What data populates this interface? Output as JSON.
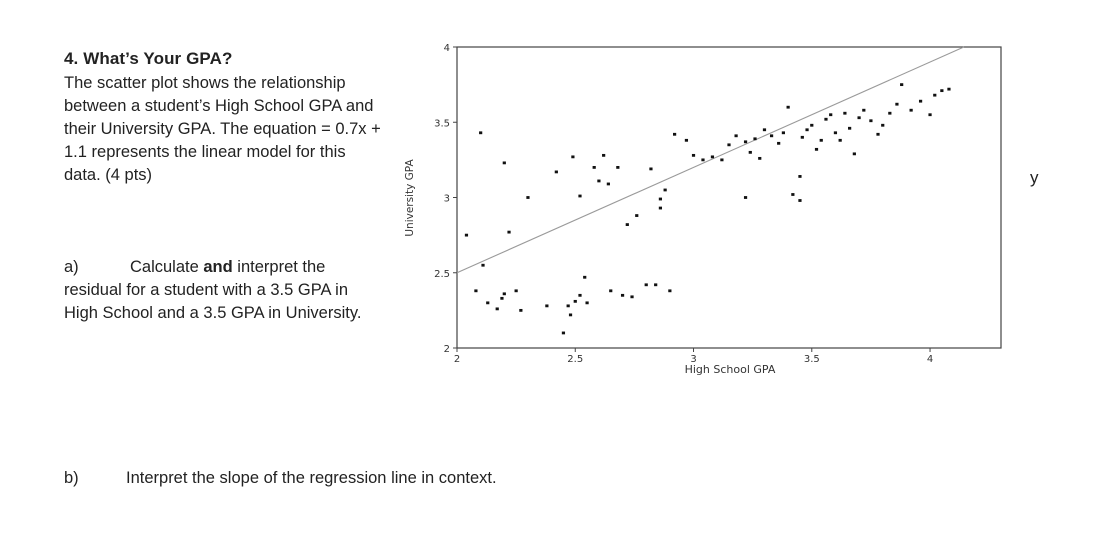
{
  "question": {
    "title": "4. What’s Your GPA?",
    "text": "The scatter plot shows the relationship between a student’s High School GPA and their University GPA. The equation = 0.7x + 1.1 represents the linear model for this data. (4 pts)"
  },
  "part_a": {
    "label": "a)",
    "text_before": "Calculate ",
    "bold": "and",
    "text_after": " interpret the residual for a student with a 3.5 GPA in High School and a 3.5 GPA in University."
  },
  "part_b": {
    "label": "b)",
    "text": "Interpret the slope of the regression line in context."
  },
  "stray_letter": "y",
  "chart_data": {
    "type": "scatter",
    "title": "",
    "xlabel": "High School GPA",
    "ylabel": "University GPA",
    "xlim": [
      2,
      4.3
    ],
    "ylim": [
      2,
      4
    ],
    "xticks": [
      "2",
      "2.5",
      "3",
      "3.5",
      "4"
    ],
    "xtick_values": [
      2,
      2.5,
      3,
      3.5,
      4
    ],
    "yticks": [
      "2",
      "2.5",
      "3",
      "3.5",
      "4"
    ],
    "ytick_values": [
      2,
      2.5,
      3,
      3.5,
      4
    ],
    "grid": false,
    "regression_line": {
      "slope": 0.7,
      "intercept": 1.1
    },
    "points": [
      [
        2.04,
        2.75
      ],
      [
        2.08,
        2.38
      ],
      [
        2.11,
        2.55
      ],
      [
        2.1,
        3.43
      ],
      [
        2.13,
        2.3
      ],
      [
        2.17,
        2.26
      ],
      [
        2.19,
        2.33
      ],
      [
        2.2,
        2.36
      ],
      [
        2.22,
        2.77
      ],
      [
        2.25,
        2.38
      ],
      [
        2.27,
        2.25
      ],
      [
        2.2,
        3.23
      ],
      [
        2.3,
        3.0
      ],
      [
        2.38,
        2.28
      ],
      [
        2.42,
        3.17
      ],
      [
        2.45,
        2.1
      ],
      [
        2.47,
        2.28
      ],
      [
        2.48,
        2.22
      ],
      [
        2.49,
        3.27
      ],
      [
        2.5,
        2.31
      ],
      [
        2.52,
        2.35
      ],
      [
        2.54,
        2.47
      ],
      [
        2.55,
        2.3
      ],
      [
        2.58,
        3.2
      ],
      [
        2.6,
        3.11
      ],
      [
        2.62,
        3.28
      ],
      [
        2.64,
        3.09
      ],
      [
        2.65,
        2.38
      ],
      [
        2.68,
        3.2
      ],
      [
        2.7,
        2.35
      ],
      [
        2.72,
        2.82
      ],
      [
        2.74,
        2.34
      ],
      [
        2.76,
        2.88
      ],
      [
        2.8,
        2.42
      ],
      [
        2.82,
        3.19
      ],
      [
        2.84,
        2.42
      ],
      [
        2.86,
        2.93
      ],
      [
        2.88,
        3.05
      ],
      [
        2.9,
        2.38
      ],
      [
        2.92,
        3.42
      ],
      [
        2.97,
        3.38
      ],
      [
        3.0,
        3.28
      ],
      [
        3.04,
        3.25
      ],
      [
        3.08,
        3.27
      ],
      [
        3.12,
        3.25
      ],
      [
        3.15,
        3.35
      ],
      [
        3.18,
        3.41
      ],
      [
        3.22,
        3.37
      ],
      [
        3.24,
        3.3
      ],
      [
        3.26,
        3.39
      ],
      [
        3.28,
        3.26
      ],
      [
        3.3,
        3.45
      ],
      [
        3.33,
        3.41
      ],
      [
        3.36,
        3.36
      ],
      [
        3.38,
        3.43
      ],
      [
        3.4,
        3.6
      ],
      [
        3.42,
        3.02
      ],
      [
        3.46,
        3.4
      ],
      [
        3.48,
        3.45
      ],
      [
        3.5,
        3.48
      ],
      [
        3.52,
        3.32
      ],
      [
        3.54,
        3.38
      ],
      [
        3.56,
        3.52
      ],
      [
        3.58,
        3.55
      ],
      [
        3.6,
        3.43
      ],
      [
        3.62,
        3.38
      ],
      [
        3.64,
        3.56
      ],
      [
        3.66,
        3.46
      ],
      [
        3.68,
        3.29
      ],
      [
        3.7,
        3.53
      ],
      [
        3.72,
        3.58
      ],
      [
        3.75,
        3.51
      ],
      [
        3.78,
        3.42
      ],
      [
        3.8,
        3.48
      ],
      [
        3.83,
        3.56
      ],
      [
        3.86,
        3.62
      ],
      [
        3.88,
        3.75
      ],
      [
        3.92,
        3.58
      ],
      [
        3.96,
        3.64
      ],
      [
        4.0,
        3.55
      ],
      [
        4.02,
        3.68
      ],
      [
        4.05,
        3.71
      ],
      [
        4.08,
        3.72
      ],
      [
        3.45,
        3.14
      ],
      [
        3.22,
        3.0
      ],
      [
        2.52,
        3.01
      ],
      [
        2.86,
        2.99
      ],
      [
        3.45,
        2.98
      ]
    ]
  }
}
